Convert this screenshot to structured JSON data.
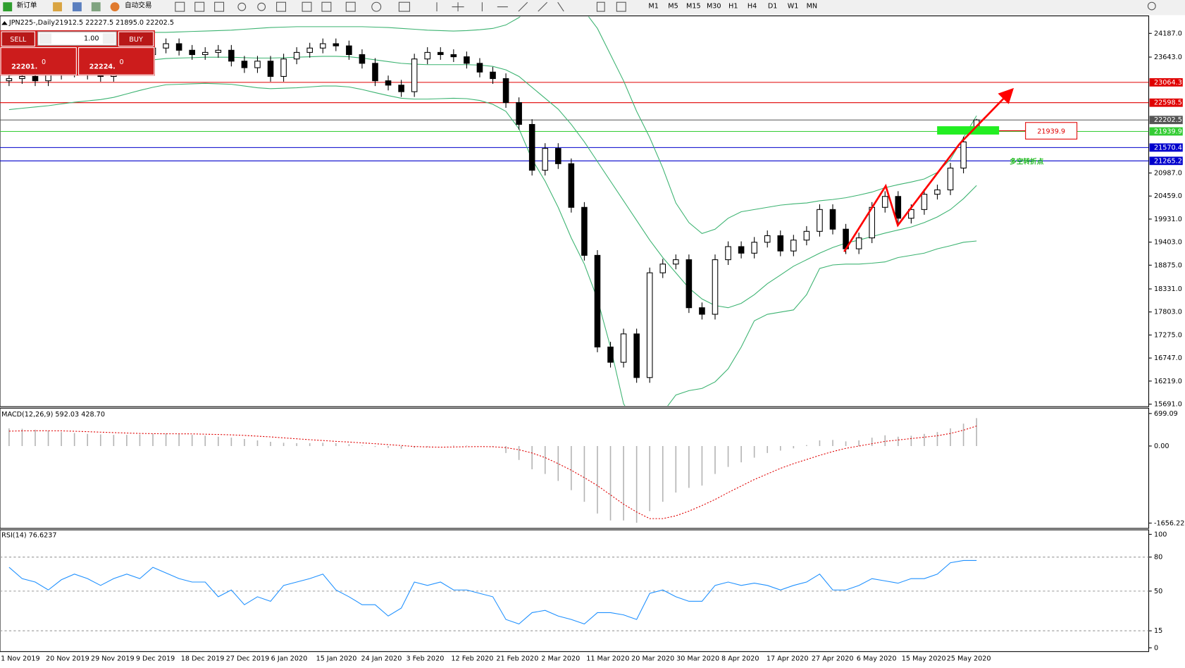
{
  "toolbar": {
    "buttons": [
      "新订单",
      "自动交易"
    ],
    "timeframes": [
      "M1",
      "M5",
      "M15",
      "M30",
      "H1",
      "H4",
      "D1",
      "W1",
      "MN"
    ]
  },
  "header": {
    "symbol": "JPN225-,Daily",
    "ohlc": "21912.5 22227.5 21895.0 22202.5"
  },
  "trade_panel": {
    "sell": "SELL",
    "buy": "BUY",
    "lot": "1.00",
    "bid": "22201.",
    "bid_pip": "0",
    "ask": "22224.",
    "ask_pip": "0"
  },
  "annotations": {
    "note": "多空转折点"
  },
  "chart_data": [
    {
      "type": "candlestick",
      "x_labels": [
        "1 Nov 2019",
        "20 Nov 2019",
        "29 Nov 2019",
        "9 Dec 2019",
        "18 Dec 2019",
        "27 Dec 2019",
        "6 Jan 2020",
        "15 Jan 2020",
        "24 Jan 2020",
        "3 Feb 2020",
        "12 Feb 2020",
        "21 Feb 2020",
        "2 Mar 2020",
        "11 Mar 2020",
        "20 Mar 2020",
        "30 Mar 2020",
        "8 Apr 2020",
        "17 Apr 2020",
        "27 Apr 2020",
        "6 May 2020",
        "15 May 2020",
        "25 May 2020"
      ],
      "open": [
        23100,
        23150,
        23200,
        23100,
        23250,
        23300,
        23350,
        23250,
        23200,
        23400,
        23500,
        23700,
        23850,
        23950,
        23800,
        23700,
        23750,
        23800,
        23550,
        23400,
        23550,
        23200,
        23600,
        23750,
        23850,
        23950,
        23900,
        23700,
        23500,
        23100,
        23000,
        22850,
        23600,
        23750,
        23700,
        23650,
        23500,
        23300,
        23150,
        22600,
        22100,
        21050,
        21550,
        21200,
        20200,
        19100,
        17000,
        16650,
        17300,
        16300,
        18700,
        18900,
        19000,
        17900,
        17750,
        19000,
        19300,
        19150,
        19400,
        19550,
        19200,
        19450,
        19650,
        20150,
        19700,
        19250,
        19500,
        20200,
        20450,
        19950,
        20150,
        20500,
        20600,
        21100,
        21912.5
      ],
      "high": [
        23270,
        23320,
        23320,
        23370,
        23420,
        23470,
        23470,
        23370,
        23520,
        23620,
        23820,
        23970,
        24070,
        24070,
        23920,
        23870,
        23920,
        23920,
        23670,
        23670,
        23670,
        23720,
        23870,
        23970,
        24070,
        24070,
        24020,
        23820,
        23620,
        23220,
        23120,
        23720,
        23870,
        23870,
        23820,
        23770,
        23620,
        23420,
        23270,
        22720,
        22220,
        21670,
        21670,
        21320,
        20320,
        19220,
        17120,
        17420,
        17420,
        18820,
        19020,
        19120,
        19120,
        18020,
        19120,
        19420,
        19420,
        19520,
        19670,
        19670,
        19570,
        19770,
        20270,
        20270,
        19820,
        19620,
        20320,
        20570,
        20570,
        20270,
        20620,
        20720,
        21220,
        21820,
        22227.5
      ],
      "low": [
        22980,
        23030,
        22980,
        22980,
        23130,
        23180,
        23130,
        23080,
        23080,
        23280,
        23380,
        23580,
        23730,
        23680,
        23580,
        23580,
        23630,
        23430,
        23280,
        23280,
        23080,
        23080,
        23480,
        23630,
        23730,
        23780,
        23580,
        23380,
        22980,
        22880,
        22730,
        22730,
        23480,
        23580,
        23530,
        23380,
        23180,
        23030,
        22480,
        21980,
        20930,
        20930,
        21080,
        20080,
        18980,
        16880,
        16530,
        16530,
        16180,
        16180,
        18580,
        18780,
        17780,
        17630,
        17630,
        18880,
        19030,
        19030,
        19280,
        19080,
        19080,
        19330,
        19530,
        19580,
        19130,
        19130,
        19380,
        20080,
        19830,
        19830,
        20030,
        20380,
        20480,
        20980,
        21895
      ],
      "close": [
        23150,
        23200,
        23100,
        23250,
        23300,
        23350,
        23250,
        23200,
        23400,
        23500,
        23700,
        23850,
        23950,
        23800,
        23700,
        23750,
        23800,
        23550,
        23400,
        23550,
        23200,
        23600,
        23750,
        23850,
        23950,
        23900,
        23700,
        23500,
        23100,
        23000,
        22850,
        23600,
        23750,
        23700,
        23650,
        23500,
        23300,
        23150,
        22600,
        22100,
        21050,
        21550,
        21200,
        20200,
        19100,
        17000,
        16650,
        17300,
        16300,
        18700,
        18900,
        19000,
        17900,
        17750,
        19000,
        19300,
        19150,
        19400,
        19550,
        19200,
        19450,
        19650,
        20150,
        19700,
        19250,
        19500,
        20200,
        20450,
        19950,
        20150,
        20500,
        20600,
        21100,
        21700,
        22202.5
      ],
      "color_up": "#ffffff",
      "color_down": "#000000",
      "band_color": "#3cb371",
      "bands": [
        {
          "values": [
            24000,
            24050,
            24100,
            24130,
            24150,
            24170,
            24180,
            24190,
            24200,
            24200,
            24200,
            24210,
            24210,
            24220,
            24230,
            24240,
            24250,
            24260,
            24280,
            24300,
            24320,
            24330,
            24340,
            24340,
            24340,
            24340,
            24340,
            24340,
            24330,
            24320,
            24300,
            24280,
            24260,
            24250,
            24240,
            24250,
            24270,
            24300,
            24380,
            24550,
            24800,
            24950,
            25000,
            24950,
            24700,
            24300,
            23700,
            23100,
            22400,
            21800,
            21100,
            20300,
            19850,
            19600,
            19700,
            19950,
            20100,
            20150,
            20200,
            20250,
            20280,
            20300,
            20350,
            20380,
            20420,
            20480,
            20550,
            20650,
            20720,
            20780,
            20850,
            21000,
            21300,
            21800,
            22300
          ]
        },
        {
          "values": [
            23220,
            23260,
            23300,
            23330,
            23360,
            23390,
            23410,
            23430,
            23460,
            23500,
            23540,
            23580,
            23610,
            23620,
            23630,
            23640,
            23640,
            23640,
            23630,
            23620,
            23620,
            23630,
            23640,
            23650,
            23660,
            23660,
            23650,
            23620,
            23580,
            23540,
            23500,
            23480,
            23470,
            23470,
            23470,
            23470,
            23460,
            23430,
            23350,
            23200,
            22950,
            22700,
            22450,
            22100,
            21700,
            21250,
            20800,
            20350,
            19900,
            19450,
            19050,
            18700,
            18350,
            18100,
            17950,
            17900,
            18000,
            18200,
            18450,
            18650,
            18850,
            19000,
            19150,
            19280,
            19380,
            19450,
            19530,
            19610,
            19680,
            19750,
            19850,
            19980,
            20150,
            20400,
            20700
          ]
        },
        {
          "values": [
            22440,
            22470,
            22500,
            22530,
            22570,
            22610,
            22640,
            22670,
            22720,
            22800,
            22880,
            22950,
            23010,
            23020,
            23030,
            23040,
            23030,
            23020,
            22980,
            22940,
            22920,
            22930,
            22940,
            22960,
            22980,
            22980,
            22960,
            22900,
            22830,
            22760,
            22700,
            22680,
            22680,
            22690,
            22700,
            22690,
            22650,
            22560,
            22400,
            22000,
            21300,
            20800,
            20200,
            19500,
            18900,
            18100,
            17000,
            15700,
            15200,
            15100,
            15500,
            15900,
            16000,
            16050,
            16200,
            16500,
            17000,
            17600,
            17750,
            17800,
            17850,
            18200,
            18800,
            18880,
            18900,
            18900,
            18920,
            18950,
            19050,
            19100,
            19150,
            19250,
            19320,
            19400,
            19430
          ]
        }
      ],
      "ylim": [
        15650,
        24570
      ],
      "yticks": [
        {
          "value": 24187,
          "label": "24187.0"
        },
        {
          "value": 23643,
          "label": "23643.0"
        },
        {
          "value": 20987,
          "label": "20987.0"
        },
        {
          "value": 20459,
          "label": "20459.0"
        },
        {
          "value": 19931,
          "label": "19931.0"
        },
        {
          "value": 19403,
          "label": "19403.0"
        },
        {
          "value": 18875,
          "label": "18875.0"
        },
        {
          "value": 18331,
          "label": "18331.0"
        },
        {
          "value": 17803,
          "label": "17803.0"
        },
        {
          "value": 17275,
          "label": "17275.0"
        },
        {
          "value": 16747,
          "label": "16747.0"
        },
        {
          "value": 16219,
          "label": "16219.0"
        },
        {
          "value": 15691,
          "label": "15691.0"
        }
      ],
      "levels": [
        {
          "value": 23064.3,
          "color": "#e00000"
        },
        {
          "value": 22598.5,
          "color": "#e00000"
        },
        {
          "value": 21939.9,
          "color": "#33cc33"
        },
        {
          "value": 22202.5,
          "color": "#555555"
        },
        {
          "value": 21570.4,
          "color": "#0000cc"
        },
        {
          "value": 21265.2,
          "color": "#0000cc"
        }
      ]
    },
    {
      "type": "macd",
      "label": "MACD(12,26,9) 592.03 428.70",
      "values": [
        380,
        370,
        350,
        330,
        300,
        280,
        260,
        250,
        240,
        240,
        250,
        260,
        270,
        260,
        240,
        220,
        200,
        180,
        150,
        120,
        90,
        70,
        60,
        60,
        70,
        60,
        40,
        10,
        -20,
        -40,
        -60,
        -40,
        -20,
        0,
        10,
        10,
        0,
        -20,
        -150,
        -300,
        -500,
        -600,
        -750,
        -950,
        -1200,
        -1450,
        -1600,
        -1600,
        -1650,
        -1400,
        -1200,
        -1000,
        -900,
        -850,
        -600,
        -450,
        -350,
        -250,
        -150,
        -100,
        -50,
        20,
        120,
        130,
        100,
        120,
        180,
        230,
        200,
        220,
        260,
        300,
        380,
        480,
        600
      ],
      "signal": [
        320,
        325,
        328,
        328,
        325,
        318,
        308,
        298,
        288,
        278,
        270,
        265,
        262,
        262,
        260,
        255,
        248,
        240,
        228,
        212,
        195,
        175,
        155,
        135,
        118,
        100,
        85,
        68,
        50,
        30,
        10,
        -10,
        -20,
        -25,
        -20,
        -15,
        -12,
        -15,
        -35,
        -80,
        -150,
        -250,
        -380,
        -520,
        -680,
        -850,
        -1050,
        -1250,
        -1420,
        -1560,
        -1560,
        -1500,
        -1400,
        -1280,
        -1150,
        -1000,
        -860,
        -720,
        -600,
        -480,
        -380,
        -290,
        -200,
        -120,
        -50,
        0,
        50,
        100,
        130,
        160,
        190,
        220,
        270,
        340,
        430
      ],
      "color": "#b4b4b4",
      "signal_color": "#e00000",
      "ylim": [
        -1754,
        797
      ],
      "yticks": [
        699.09,
        {
          "value": 0,
          "label": "0.00"
        },
        -1656.22
      ]
    },
    {
      "type": "line",
      "label": "RSI(14) 76.6237",
      "values": [
        71,
        61,
        58,
        51,
        60,
        65,
        61,
        55,
        61,
        65,
        61,
        71,
        66,
        61,
        58,
        58,
        45,
        51,
        38,
        45,
        41,
        55,
        58,
        61,
        65,
        51,
        45,
        38,
        38,
        28,
        35,
        58,
        55,
        58,
        51,
        51,
        48,
        45,
        25,
        21,
        31,
        33,
        28,
        25,
        21,
        31,
        31,
        29,
        25,
        48,
        51,
        45,
        41,
        41,
        55,
        58,
        55,
        57,
        55,
        51,
        55,
        58,
        65,
        51,
        51,
        55,
        61,
        59,
        57,
        61,
        61,
        65,
        75,
        77,
        77
      ],
      "color": "#1e90ff",
      "ylim": [
        -3.3,
        103.3
      ],
      "yticks": [
        100,
        80,
        50,
        15,
        0
      ]
    }
  ]
}
